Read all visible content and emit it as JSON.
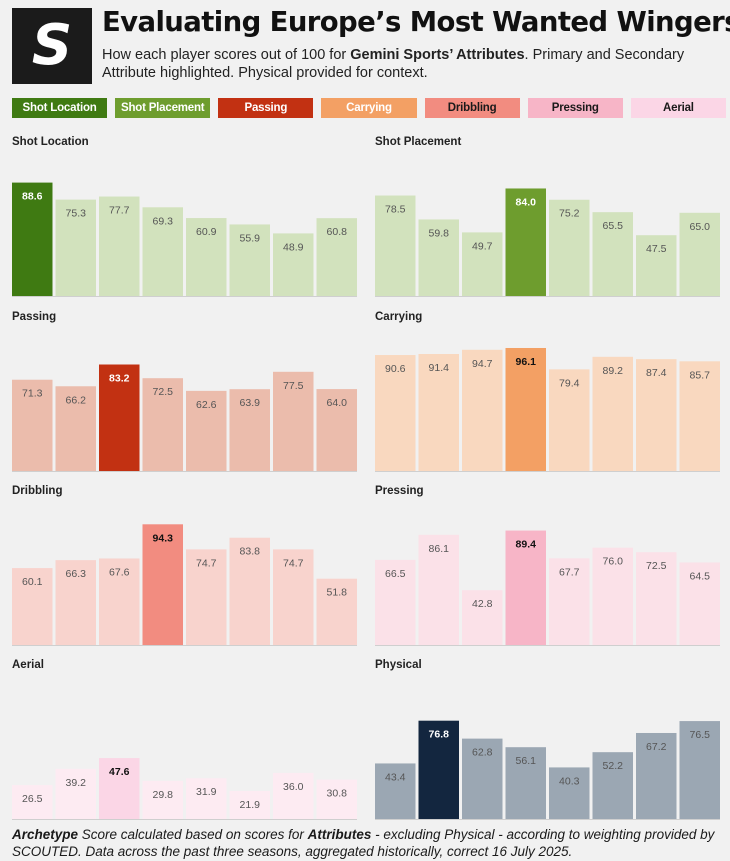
{
  "header": {
    "logo": "S",
    "title": "Evaluating Europe’s Most Wanted Wingers",
    "subtitle_1": "How each player scores out of 100 for ",
    "subtitle_bold": "Gemini Sports’ Attributes",
    "subtitle_2": ". Primary and Secondary Attribute highlighted. Physical provided for context."
  },
  "legend": [
    {
      "label": "Shot Location",
      "bg": "#3f7a12",
      "fg": "#ffffff"
    },
    {
      "label": "Shot Placement",
      "bg": "#6e9d2e",
      "fg": "#ffffff"
    },
    {
      "label": "Passing",
      "bg": "#c23112",
      "fg": "#ffffff"
    },
    {
      "label": "Carrying",
      "bg": "#f3a064",
      "fg": "#ffffff"
    },
    {
      "label": "Dribbling",
      "bg": "#f28c80",
      "fg": "#1a1a1a"
    },
    {
      "label": "Pressing",
      "bg": "#f7b5c7",
      "fg": "#1a1a1a"
    },
    {
      "label": "Aerial",
      "bg": "#fbd6e6",
      "fg": "#1a1a1a"
    }
  ],
  "chart_data": [
    {
      "type": "bar",
      "title": "Shot Location",
      "ylim": [
        0,
        100
      ],
      "values": [
        88.6,
        75.3,
        77.7,
        69.3,
        60.9,
        55.9,
        48.9,
        60.8
      ],
      "highlight": [
        0
      ],
      "base_color": "#d2e2bd",
      "highlight_color": "#3f7a12"
    },
    {
      "type": "bar",
      "title": "Shot Placement",
      "ylim": [
        0,
        100
      ],
      "values": [
        78.5,
        59.8,
        49.7,
        84.0,
        75.2,
        65.5,
        47.5,
        65.0
      ],
      "highlight": [
        3
      ],
      "base_color": "#d2e2bd",
      "highlight_color": "#6e9d2e"
    },
    {
      "type": "bar",
      "title": "Passing",
      "ylim": [
        0,
        100
      ],
      "values": [
        71.3,
        66.2,
        83.2,
        72.5,
        62.6,
        63.9,
        77.5,
        64.0
      ],
      "highlight": [
        2
      ],
      "base_color": "#ebbcac",
      "highlight_color": "#c23112"
    },
    {
      "type": "bar",
      "title": "Carrying",
      "ylim": [
        0,
        100
      ],
      "values": [
        90.6,
        91.4,
        94.7,
        96.1,
        79.4,
        89.2,
        87.4,
        85.7
      ],
      "highlight": [
        3
      ],
      "base_color": "#f9d8bf",
      "highlight_color": "#f3a064"
    },
    {
      "type": "bar",
      "title": "Dribbling",
      "ylim": [
        0,
        100
      ],
      "values": [
        60.1,
        66.3,
        67.6,
        94.3,
        74.7,
        83.8,
        74.7,
        51.8
      ],
      "highlight": [
        3
      ],
      "base_color": "#f8d3cd",
      "highlight_color": "#f28c80"
    },
    {
      "type": "bar",
      "title": "Pressing",
      "ylim": [
        0,
        100
      ],
      "values": [
        66.5,
        86.1,
        42.8,
        89.4,
        67.7,
        76.0,
        72.5,
        64.5
      ],
      "highlight": [
        3
      ],
      "base_color": "#fbe1e8",
      "highlight_color": "#f7b5c7"
    },
    {
      "type": "bar",
      "title": "Aerial",
      "ylim": [
        0,
        100
      ],
      "values": [
        26.5,
        39.2,
        47.6,
        29.8,
        31.9,
        21.9,
        36.0,
        30.8
      ],
      "highlight": [
        2
      ],
      "base_color": "#fdebf2",
      "highlight_color": "#fbd6e6"
    },
    {
      "type": "bar",
      "title": "Physical",
      "ylim": [
        0,
        100
      ],
      "values": [
        43.4,
        76.8,
        62.8,
        56.1,
        40.3,
        52.2,
        67.2,
        76.5
      ],
      "highlight": [
        1
      ],
      "base_color": "#9ba7b3",
      "highlight_color": "#13263f"
    }
  ],
  "footnote": {
    "part1": "Archetype",
    "part2": " Score calculated based on scores for ",
    "part3": "Attributes",
    "part4": " - excluding Physical - according to weighting provided by SCOUTED. Data across the past three seasons, aggregated historically, correct 16 July 2025."
  }
}
